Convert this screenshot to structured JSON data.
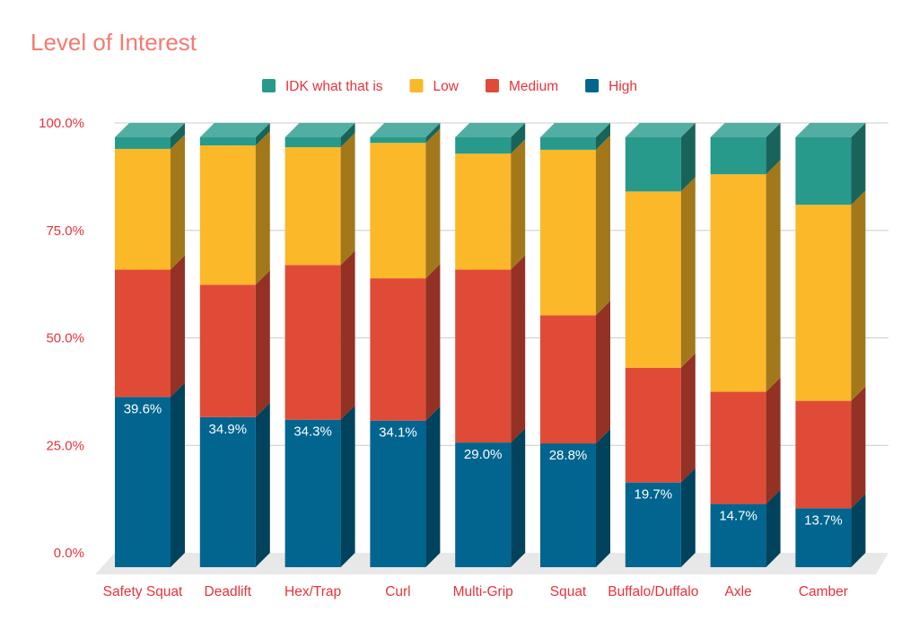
{
  "chart_data": {
    "type": "bar",
    "stacked": true,
    "three_d": true,
    "title": "Level of Interest",
    "xlabel": "",
    "ylabel": "",
    "ylim": [
      0,
      100
    ],
    "yticks": [
      "0.0%",
      "25.0%",
      "50.0%",
      "75.0%",
      "100.0%"
    ],
    "grid": true,
    "legend_position": "top",
    "categories": [
      "Safety Squat",
      "Deadlift",
      "Hex/Trap",
      "Curl",
      "Multi-Grip",
      "Squat",
      "Buffalo/Duffalo",
      "Axle",
      "Camber"
    ],
    "series": [
      {
        "name": "High",
        "color": "#01658f",
        "values": [
          39.6,
          34.9,
          34.3,
          34.1,
          29.0,
          28.8,
          19.7,
          14.7,
          13.7
        ],
        "labels": [
          "39.6%",
          "34.9%",
          "34.3%",
          "34.1%",
          "29.0%",
          "28.8%",
          "19.7%",
          "14.7%",
          "13.7%"
        ]
      },
      {
        "name": "Medium",
        "color": "#e04b37",
        "values": [
          29.6,
          30.8,
          36.0,
          33.1,
          40.2,
          29.8,
          26.7,
          26.1,
          25.0
        ]
      },
      {
        "name": "Low",
        "color": "#fbb829",
        "values": [
          28.1,
          32.4,
          27.4,
          31.5,
          27.0,
          38.5,
          41.0,
          50.6,
          45.6
        ]
      },
      {
        "name": "IDK what that is",
        "color": "#279a8b",
        "values": [
          2.7,
          1.9,
          2.3,
          1.3,
          3.8,
          2.9,
          12.6,
          8.6,
          15.7
        ]
      }
    ],
    "legend_order": [
      "IDK what that is",
      "Low",
      "Medium",
      "High"
    ]
  }
}
